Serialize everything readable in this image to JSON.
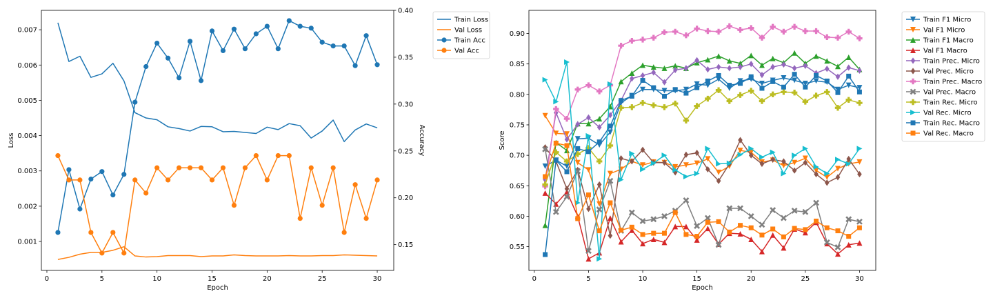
{
  "colors": {
    "train_loss": "#1f77b4",
    "val_loss": "#ff7f0e",
    "train_acc": "#1f77b4",
    "val_acc": "#ff7f0e",
    "train_f1_micro": "#1f77b4",
    "val_f1_micro": "#ff7f0e",
    "train_f1_macro": "#2ca02c",
    "val_f1_macro": "#d62728",
    "train_prec_micro": "#9467bd",
    "val_prec_micro": "#8c564b",
    "train_prec_macro": "#e377c2",
    "val_prec_macro": "#7f7f7f",
    "train_rec_micro": "#bcbd22",
    "val_rec_micro": "#17becf",
    "train_rec_macro": "#1f77b4",
    "val_rec_macro": "#ff7f0e"
  },
  "chart_data": [
    {
      "type": "line",
      "xlabel": "Epoch",
      "ylabel": "Loss",
      "y2label": "Accuracy",
      "xlim": [
        -0.5,
        31.5
      ],
      "ylim": [
        0.00018,
        0.00755
      ],
      "y2lim": [
        0.1225,
        0.4
      ],
      "xticks": [
        0,
        5,
        10,
        15,
        20,
        25,
        30
      ],
      "yticks": [
        0.001,
        0.002,
        0.003,
        0.004,
        0.005,
        0.006,
        0.007
      ],
      "yticklabels": [
        "0.001",
        "0.002",
        "0.003",
        "0.004",
        "0.005",
        "0.006",
        "0.007"
      ],
      "y2ticks": [
        0.15,
        0.2,
        0.25,
        0.3,
        0.35,
        0.4
      ],
      "y2ticklabels": [
        "0.15",
        "0.20",
        "0.25",
        "0.30",
        "0.35",
        "0.40"
      ],
      "grid": false,
      "legend_position": "outside-right-top",
      "x": [
        1,
        2,
        3,
        4,
        5,
        6,
        7,
        8,
        9,
        10,
        11,
        12,
        13,
        14,
        15,
        16,
        17,
        18,
        19,
        20,
        21,
        22,
        23,
        24,
        25,
        26,
        27,
        28,
        29,
        30
      ],
      "series": [
        {
          "name": "Train Loss",
          "axis": "left",
          "marker": "none",
          "color_key": "train_loss",
          "values": [
            0.0072,
            0.0061,
            0.00625,
            0.00565,
            0.00575,
            0.00605,
            0.00555,
            0.00465,
            0.0045,
            0.00445,
            0.00425,
            0.0042,
            0.00413,
            0.00426,
            0.00425,
            0.00411,
            0.00412,
            0.00409,
            0.00406,
            0.00424,
            0.00417,
            0.00434,
            0.00428,
            0.00393,
            0.00413,
            0.00444,
            0.00383,
            0.00416,
            0.00433,
            0.00422
          ]
        },
        {
          "name": "Val Loss",
          "axis": "left",
          "marker": "none",
          "color_key": "val_loss",
          "values": [
            0.00049,
            0.00055,
            0.00064,
            0.00069,
            0.00069,
            0.00075,
            0.00085,
            0.00059,
            0.00056,
            0.00057,
            0.0006,
            0.0006,
            0.0006,
            0.00057,
            0.00059,
            0.00059,
            0.00062,
            0.0006,
            0.00059,
            0.00059,
            0.00059,
            0.0006,
            0.00059,
            0.00059,
            0.0006,
            0.0006,
            0.00062,
            0.00061,
            0.0006,
            0.00059
          ]
        },
        {
          "name": "Train Acc",
          "axis": "right",
          "marker": "circle",
          "color_key": "train_acc",
          "values": [
            0.163,
            0.23,
            0.188,
            0.22,
            0.228,
            0.203,
            0.225,
            0.302,
            0.34,
            0.365,
            0.349,
            0.328,
            0.367,
            0.325,
            0.378,
            0.357,
            0.38,
            0.359,
            0.375,
            0.383,
            0.359,
            0.389,
            0.383,
            0.381,
            0.366,
            0.362,
            0.362,
            0.341,
            0.373,
            0.342
          ]
        },
        {
          "name": "Val Acc",
          "axis": "right",
          "marker": "circle",
          "color_key": "val_acc",
          "values": [
            0.245,
            0.219,
            0.219,
            0.163,
            0.141,
            0.163,
            0.141,
            0.219,
            0.205,
            0.232,
            0.219,
            0.232,
            0.232,
            0.232,
            0.219,
            0.232,
            0.192,
            0.232,
            0.245,
            0.219,
            0.245,
            0.245,
            0.178,
            0.232,
            0.192,
            0.232,
            0.163,
            0.214,
            0.178,
            0.219
          ]
        }
      ]
    },
    {
      "type": "line",
      "xlabel": "Epoch",
      "ylabel": "Score",
      "xlim": [
        -0.5,
        31.5
      ],
      "ylim": [
        0.511,
        0.938
      ],
      "xticks": [
        0,
        5,
        10,
        15,
        20,
        25,
        30
      ],
      "yticks": [
        0.55,
        0.6,
        0.65,
        0.7,
        0.75,
        0.8,
        0.85,
        0.9
      ],
      "yticklabels": [
        "0.55",
        "0.60",
        "0.65",
        "0.70",
        "0.75",
        "0.80",
        "0.85",
        "0.90"
      ],
      "grid": false,
      "legend_position": "outside-right-top",
      "x": [
        1,
        2,
        3,
        4,
        5,
        6,
        7,
        8,
        9,
        10,
        11,
        12,
        13,
        14,
        15,
        16,
        17,
        18,
        19,
        20,
        21,
        22,
        23,
        24,
        25,
        26,
        27,
        28,
        29,
        30
      ],
      "series": [
        {
          "name": "Train F1 Micro",
          "marker": "tri_down",
          "color_key": "train_f1_micro",
          "values": [
            0.682,
            0.692,
            0.682,
            0.727,
            0.728,
            0.717,
            0.738,
            0.786,
            0.798,
            0.808,
            0.808,
            0.806,
            0.806,
            0.808,
            0.817,
            0.815,
            0.825,
            0.81,
            0.822,
            0.825,
            0.818,
            0.823,
            0.827,
            0.823,
            0.818,
            0.822,
            0.82,
            0.808,
            0.815,
            0.811
          ]
        },
        {
          "name": "Val F1 Micro",
          "marker": "tri_down",
          "color_key": "val_f1_micro",
          "values": [
            0.765,
            0.736,
            0.735,
            0.688,
            0.676,
            0.62,
            0.67,
            0.677,
            0.69,
            0.684,
            0.689,
            0.688,
            0.681,
            0.684,
            0.687,
            0.694,
            0.672,
            0.682,
            0.708,
            0.705,
            0.689,
            0.692,
            0.683,
            0.688,
            0.695,
            0.675,
            0.664,
            0.678,
            0.686,
            0.689
          ]
        },
        {
          "name": "Train F1 Macro",
          "marker": "tri_up",
          "color_key": "train_f1_macro",
          "values": [
            0.585,
            0.721,
            0.708,
            0.752,
            0.752,
            0.76,
            0.78,
            0.821,
            0.835,
            0.848,
            0.845,
            0.843,
            0.847,
            0.843,
            0.852,
            0.857,
            0.863,
            0.855,
            0.851,
            0.864,
            0.848,
            0.859,
            0.852,
            0.868,
            0.851,
            0.863,
            0.855,
            0.846,
            0.861,
            0.841
          ]
        },
        {
          "name": "Val F1 Macro",
          "marker": "tri_up",
          "color_key": "val_f1_macro",
          "values": [
            0.638,
            0.62,
            0.64,
            0.6,
            0.53,
            0.54,
            0.597,
            0.558,
            0.577,
            0.555,
            0.562,
            0.557,
            0.583,
            0.583,
            0.561,
            0.58,
            0.554,
            0.572,
            0.571,
            0.562,
            0.542,
            0.569,
            0.548,
            0.579,
            0.573,
            0.59,
            0.555,
            0.538,
            0.553,
            0.556
          ]
        },
        {
          "name": "Train Prec. Micro",
          "marker": "diamond",
          "color_key": "train_prec_micro",
          "values": [
            0.66,
            0.77,
            0.726,
            0.751,
            0.762,
            0.746,
            0.766,
            0.79,
            0.826,
            0.831,
            0.836,
            0.82,
            0.84,
            0.843,
            0.856,
            0.841,
            0.845,
            0.843,
            0.845,
            0.85,
            0.832,
            0.845,
            0.849,
            0.843,
            0.847,
            0.835,
            0.842,
            0.829,
            0.844,
            0.839
          ]
        },
        {
          "name": "Val Prec. Micro",
          "marker": "diamond",
          "color_key": "val_prec_micro",
          "values": [
            0.713,
            0.69,
            0.645,
            0.676,
            0.612,
            0.652,
            0.568,
            0.695,
            0.69,
            0.709,
            0.688,
            0.688,
            0.672,
            0.701,
            0.704,
            0.677,
            0.658,
            0.686,
            0.725,
            0.7,
            0.686,
            0.693,
            0.69,
            0.675,
            0.688,
            0.669,
            0.655,
            0.664,
            0.694,
            0.669
          ]
        },
        {
          "name": "Train Prec. Macro",
          "marker": "plus",
          "color_key": "train_prec_macro",
          "values": [
            0.649,
            0.776,
            0.76,
            0.808,
            0.815,
            0.805,
            0.815,
            0.88,
            0.888,
            0.89,
            0.893,
            0.902,
            0.903,
            0.897,
            0.908,
            0.904,
            0.903,
            0.912,
            0.906,
            0.909,
            0.893,
            0.911,
            0.903,
            0.911,
            0.904,
            0.904,
            0.894,
            0.893,
            0.903,
            0.892
          ]
        },
        {
          "name": "Val Prec. Macro",
          "marker": "x",
          "color_key": "val_prec_macro",
          "values": [
            0.71,
            0.607,
            0.632,
            0.674,
            0.543,
            0.611,
            0.658,
            0.576,
            0.606,
            0.592,
            0.595,
            0.6,
            0.609,
            0.626,
            0.584,
            0.597,
            0.553,
            0.613,
            0.613,
            0.6,
            0.586,
            0.61,
            0.597,
            0.609,
            0.607,
            0.622,
            0.557,
            0.549,
            0.595,
            0.591
          ]
        },
        {
          "name": "Train Rec. Micro",
          "marker": "plus",
          "color_key": "train_rec_micro",
          "values": [
            0.652,
            0.705,
            0.69,
            0.702,
            0.712,
            0.69,
            0.716,
            0.778,
            0.779,
            0.786,
            0.782,
            0.779,
            0.785,
            0.757,
            0.781,
            0.793,
            0.807,
            0.789,
            0.799,
            0.806,
            0.789,
            0.8,
            0.804,
            0.803,
            0.788,
            0.798,
            0.804,
            0.778,
            0.791,
            0.786
          ]
        },
        {
          "name": "Val Rec. Micro",
          "marker": "tri_right",
          "color_key": "val_rec_micro",
          "values": [
            0.824,
            0.788,
            0.853,
            0.622,
            0.732,
            0.53,
            0.817,
            0.66,
            0.703,
            0.677,
            0.687,
            0.7,
            0.676,
            0.665,
            0.67,
            0.711,
            0.686,
            0.687,
            0.701,
            0.711,
            0.697,
            0.705,
            0.67,
            0.7,
            0.711,
            0.681,
            0.67,
            0.693,
            0.686,
            0.711
          ]
        },
        {
          "name": "Train Rec. Macro",
          "marker": "square",
          "color_key": "train_rec_macro",
          "values": [
            0.537,
            0.692,
            0.673,
            0.711,
            0.706,
            0.722,
            0.748,
            0.79,
            0.797,
            0.823,
            0.811,
            0.797,
            0.808,
            0.802,
            0.811,
            0.822,
            0.831,
            0.815,
            0.818,
            0.829,
            0.81,
            0.821,
            0.812,
            0.833,
            0.812,
            0.831,
            0.822,
            0.803,
            0.83,
            0.804
          ]
        },
        {
          "name": "Val Rec. Macro",
          "marker": "square",
          "color_key": "val_rec_macro",
          "values": [
            0.665,
            0.72,
            0.716,
            0.596,
            0.635,
            0.576,
            0.622,
            0.577,
            0.582,
            0.57,
            0.572,
            0.572,
            0.606,
            0.57,
            0.567,
            0.59,
            0.591,
            0.574,
            0.585,
            0.581,
            0.569,
            0.579,
            0.566,
            0.58,
            0.578,
            0.592,
            0.581,
            0.576,
            0.567,
            0.581
          ]
        }
      ]
    }
  ]
}
